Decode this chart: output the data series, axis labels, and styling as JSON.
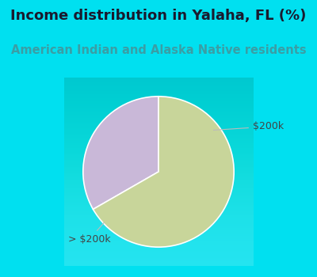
{
  "title": "Income distribution in Yalaha, FL (%)",
  "subtitle": "American Indian and Alaska Native residents",
  "title_color": "#1a1a2e",
  "subtitle_color": "#3a9ea5",
  "header_bg_color": "#00e0f0",
  "chart_bg_color": "#e8f5ee",
  "border_color": "#00e0f0",
  "slices": [
    33.3,
    66.7
  ],
  "slice_labels": [
    "$200k",
    "> $200k"
  ],
  "slice_colors": [
    "#c9b8d8",
    "#c8d59a"
  ],
  "label_color": "#444444",
  "startangle": 90,
  "title_fontsize": 13,
  "subtitle_fontsize": 10.5,
  "label_fontsize": 9
}
